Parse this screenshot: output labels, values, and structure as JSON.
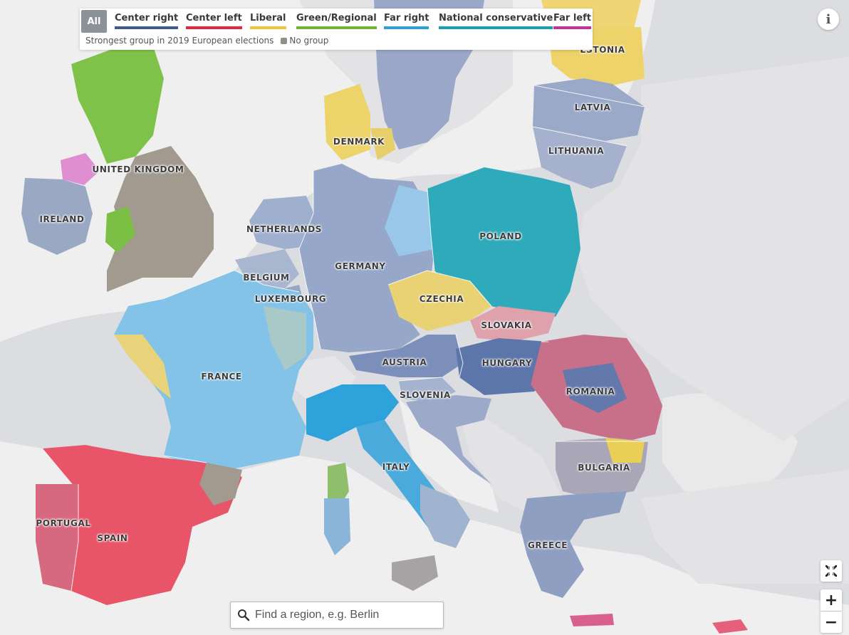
{
  "legend": {
    "all_label": "All",
    "subtitle": "Strongest group in 2019 European elections",
    "no_group_label": "No group",
    "groups": [
      {
        "label": "Center right",
        "color": "#3f5a93"
      },
      {
        "label": "Center left",
        "color": "#e5283d"
      },
      {
        "label": "Liberal",
        "color": "#f1c232"
      },
      {
        "label": "Green/Regional",
        "color": "#6fb52b"
      },
      {
        "label": "Far right",
        "color": "#2aa0dd"
      },
      {
        "label": "National conservative",
        "color": "#1aa0b2"
      },
      {
        "label": "Far left",
        "color": "#c72f9c"
      }
    ],
    "no_group_color": "#948f86"
  },
  "map_colors": {
    "background": "#dcdde0",
    "sea": "#efefef",
    "non_eu_land": "#e2e2e4",
    "center_right": "#8d9fc2",
    "center_left": "#ee5f72",
    "liberal": "#ecd46b",
    "green": "#7fc24a",
    "far_right": "#6fb9e3",
    "national_conservative": "#2aa9b9",
    "far_left": "#d678c6",
    "no_group": "#9c958b"
  },
  "country_labels": [
    "ESTONIA",
    "LATVIA",
    "LITHUANIA",
    "DENMARK",
    "UNITED KINGDOM",
    "IRELAND",
    "NETHERLANDS",
    "BELGIUM",
    "LUXEMBOURG",
    "GERMANY",
    "POLAND",
    "CZECHIA",
    "SLOVAKIA",
    "AUSTRIA",
    "HUNGARY",
    "ROMANIA",
    "SLOVENIA",
    "FRANCE",
    "ITALY",
    "BULGARIA",
    "PORTUGAL",
    "SPAIN",
    "GREECE"
  ],
  "controls": {
    "info_label": "i",
    "zoom_in_label": "+",
    "zoom_out_label": "−"
  },
  "search": {
    "placeholder": "Find a region, e.g. Berlin"
  }
}
